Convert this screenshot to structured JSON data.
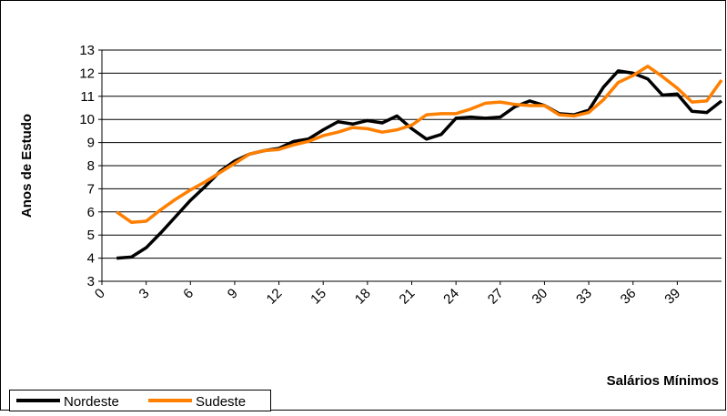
{
  "chart_data": {
    "type": "line",
    "x_label": "Salários Mínimos",
    "y_label": "Anos de Estudo",
    "x": [
      1,
      2,
      3,
      4,
      5,
      6,
      7,
      8,
      9,
      10,
      11,
      12,
      13,
      14,
      15,
      16,
      17,
      18,
      19,
      20,
      21,
      22,
      23,
      24,
      25,
      26,
      27,
      28,
      29,
      30,
      31,
      32,
      33,
      34,
      35,
      36,
      37,
      38,
      39,
      40,
      41,
      42
    ],
    "series": [
      {
        "name": "Nordeste",
        "color": "#000000",
        "values": [
          4.0,
          4.05,
          4.45,
          5.1,
          5.8,
          6.5,
          7.1,
          7.75,
          8.2,
          8.5,
          8.65,
          8.75,
          9.05,
          9.15,
          9.55,
          9.9,
          9.8,
          9.95,
          9.85,
          10.15,
          9.6,
          9.15,
          9.35,
          10.05,
          10.1,
          10.05,
          10.1,
          10.55,
          10.8,
          10.6,
          10.25,
          10.2,
          10.4,
          11.4,
          12.1,
          12.0,
          11.75,
          11.05,
          11.1,
          10.35,
          10.3,
          10.8
        ]
      },
      {
        "name": "Sudeste",
        "color": "#ff7f00",
        "values": [
          6.0,
          5.55,
          5.6,
          6.1,
          6.55,
          6.95,
          7.3,
          7.7,
          8.1,
          8.5,
          8.65,
          8.7,
          8.9,
          9.05,
          9.3,
          9.45,
          9.65,
          9.6,
          9.45,
          9.55,
          9.75,
          10.2,
          10.25,
          10.25,
          10.45,
          10.7,
          10.75,
          10.65,
          10.6,
          10.6,
          10.2,
          10.15,
          10.3,
          10.85,
          11.6,
          11.9,
          12.3,
          11.85,
          11.35,
          10.75,
          10.8,
          11.7
        ]
      }
    ],
    "xlim": [
      0,
      42
    ],
    "xticks": [
      0,
      3,
      6,
      9,
      12,
      15,
      18,
      21,
      24,
      27,
      30,
      33,
      36,
      39
    ],
    "ylim": [
      3,
      13
    ],
    "yticks": [
      3,
      4,
      5,
      6,
      7,
      8,
      9,
      10,
      11,
      12,
      13
    ],
    "grid": true
  }
}
